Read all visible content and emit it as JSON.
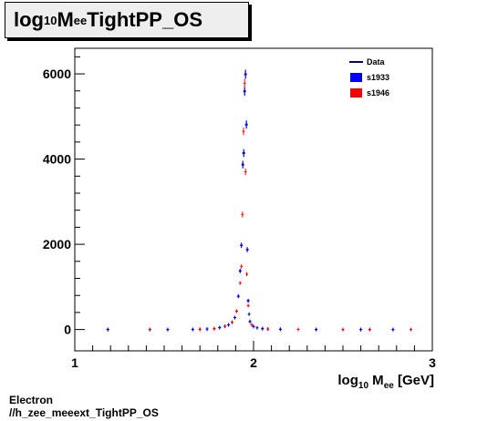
{
  "title": {
    "prefix": "log",
    "sub": "10",
    "mid": " M",
    "ee": "ee",
    "suffix": " TightPP_OS"
  },
  "xaxis": {
    "prefix": "log",
    "sub": "10",
    "m": " M",
    "ee": "ee",
    "unit": " [GeV]"
  },
  "footer": {
    "line1": "Electron",
    "line2": "//h_zee_meeext_TightPP_OS"
  },
  "legend": [
    {
      "label": "Data",
      "color": "#000088",
      "style": "line"
    },
    {
      "label": "s1933",
      "color": "#0000ff",
      "style": "box"
    },
    {
      "label": "s1946",
      "color": "#ff0000",
      "style": "box"
    }
  ],
  "chart_data": {
    "type": "scatter",
    "xlim": [
      1,
      3
    ],
    "ylim": [
      -500,
      6600
    ],
    "xticks": [
      "1",
      "2",
      "3"
    ],
    "yticks": [
      "0",
      "2000",
      "4000",
      "6000"
    ],
    "grid": false,
    "legend_position": "top-right",
    "series": [
      {
        "name": "Data",
        "color": "#000088",
        "points": [
          [
            1.185,
            0
          ],
          [
            1.42,
            0
          ],
          [
            1.52,
            0
          ],
          [
            1.66,
            2
          ],
          [
            1.7,
            5
          ],
          [
            1.74,
            10
          ],
          [
            1.78,
            20
          ],
          [
            1.81,
            45
          ],
          [
            1.84,
            75
          ],
          [
            1.86,
            110
          ],
          [
            1.88,
            170
          ],
          [
            1.895,
            280
          ],
          [
            1.905,
            430
          ],
          [
            1.915,
            780
          ],
          [
            1.925,
            1380
          ],
          [
            1.932,
            1980
          ],
          [
            1.94,
            3880
          ],
          [
            1.945,
            4150
          ],
          [
            1.95,
            5600
          ],
          [
            1.955,
            6000
          ],
          [
            1.96,
            4800
          ],
          [
            1.965,
            1880
          ],
          [
            1.97,
            680
          ],
          [
            1.975,
            360
          ],
          [
            1.98,
            190
          ],
          [
            1.99,
            110
          ],
          [
            2.0,
            70
          ],
          [
            2.02,
            40
          ],
          [
            2.05,
            20
          ],
          [
            2.08,
            12
          ],
          [
            2.15,
            6
          ],
          [
            2.25,
            3
          ],
          [
            2.35,
            1
          ],
          [
            2.5,
            0
          ],
          [
            2.6,
            0
          ],
          [
            2.65,
            0
          ],
          [
            2.78,
            0
          ]
        ]
      },
      {
        "name": "s1933",
        "color": "#0000ff",
        "points": [
          [
            1.185,
            0
          ],
          [
            1.52,
            0
          ],
          [
            1.66,
            2
          ],
          [
            1.74,
            10
          ],
          [
            1.81,
            45
          ],
          [
            1.86,
            110
          ],
          [
            1.895,
            280
          ],
          [
            1.915,
            780
          ],
          [
            1.925,
            1370
          ],
          [
            1.932,
            1970
          ],
          [
            1.94,
            3860
          ],
          [
            1.945,
            4130
          ],
          [
            1.95,
            5580
          ],
          [
            1.955,
            5980
          ],
          [
            1.96,
            4820
          ],
          [
            1.965,
            1870
          ],
          [
            1.97,
            670
          ],
          [
            1.98,
            185
          ],
          [
            2.0,
            70
          ],
          [
            2.05,
            20
          ],
          [
            2.15,
            6
          ],
          [
            2.35,
            1
          ],
          [
            2.6,
            0
          ],
          [
            2.78,
            0
          ]
        ]
      },
      {
        "name": "s1946",
        "color": "#ff0000",
        "points": [
          [
            1.42,
            0
          ],
          [
            1.7,
            5
          ],
          [
            1.78,
            20
          ],
          [
            1.84,
            75
          ],
          [
            1.88,
            170
          ],
          [
            1.905,
            430
          ],
          [
            1.925,
            1090
          ],
          [
            1.932,
            1480
          ],
          [
            1.938,
            2700
          ],
          [
            1.944,
            4650
          ],
          [
            1.95,
            5780
          ],
          [
            1.955,
            3700
          ],
          [
            1.962,
            1300
          ],
          [
            1.97,
            560
          ],
          [
            1.99,
            110
          ],
          [
            2.08,
            12
          ],
          [
            2.25,
            3
          ],
          [
            2.5,
            0
          ],
          [
            2.65,
            0
          ],
          [
            2.88,
            0
          ]
        ]
      }
    ]
  }
}
